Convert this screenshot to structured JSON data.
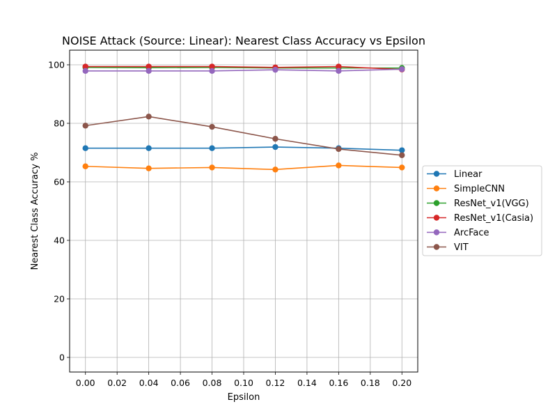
{
  "chart_data": {
    "type": "line",
    "title": "NOISE Attack (Source: Linear): Nearest Class Accuracy vs Epsilon",
    "xlabel": "Epsilon",
    "ylabel": "Nearest Class Accuracy %",
    "xlim": [
      -0.01,
      0.21
    ],
    "ylim": [
      -5,
      105
    ],
    "x_ticks": [
      0.0,
      0.02,
      0.04,
      0.06,
      0.08,
      0.1,
      0.12,
      0.14,
      0.16,
      0.18,
      0.2
    ],
    "x_tick_labels": [
      "0.00",
      "0.02",
      "0.04",
      "0.06",
      "0.08",
      "0.10",
      "0.12",
      "0.14",
      "0.16",
      "0.18",
      "0.20"
    ],
    "y_ticks": [
      0,
      20,
      40,
      60,
      80,
      100
    ],
    "y_tick_labels": [
      "0",
      "20",
      "40",
      "60",
      "80",
      "100"
    ],
    "grid": true,
    "legend_position": "outside-right",
    "x": [
      0.0,
      0.04,
      0.08,
      0.12,
      0.16,
      0.2
    ],
    "series": [
      {
        "name": "Linear",
        "color": "#1f77b4",
        "values": [
          71.5,
          71.5,
          71.5,
          71.9,
          71.5,
          70.8
        ]
      },
      {
        "name": "SimpleCNN",
        "color": "#ff7f0e",
        "values": [
          65.3,
          64.6,
          64.9,
          64.2,
          65.6,
          64.9
        ]
      },
      {
        "name": "ResNet_v1(VGG)",
        "color": "#2ca02c",
        "values": [
          99.1,
          99.0,
          99.1,
          98.9,
          98.9,
          98.9
        ]
      },
      {
        "name": "ResNet_v1(Casia)",
        "color": "#d62728",
        "values": [
          99.4,
          99.4,
          99.4,
          99.1,
          99.4,
          98.4
        ]
      },
      {
        "name": "ArcFace",
        "color": "#9467bd",
        "values": [
          97.9,
          97.9,
          97.9,
          98.3,
          97.9,
          98.5
        ]
      },
      {
        "name": "VIT",
        "color": "#8c564b",
        "values": [
          79.2,
          82.3,
          78.8,
          74.7,
          71.2,
          69.1
        ]
      }
    ]
  }
}
